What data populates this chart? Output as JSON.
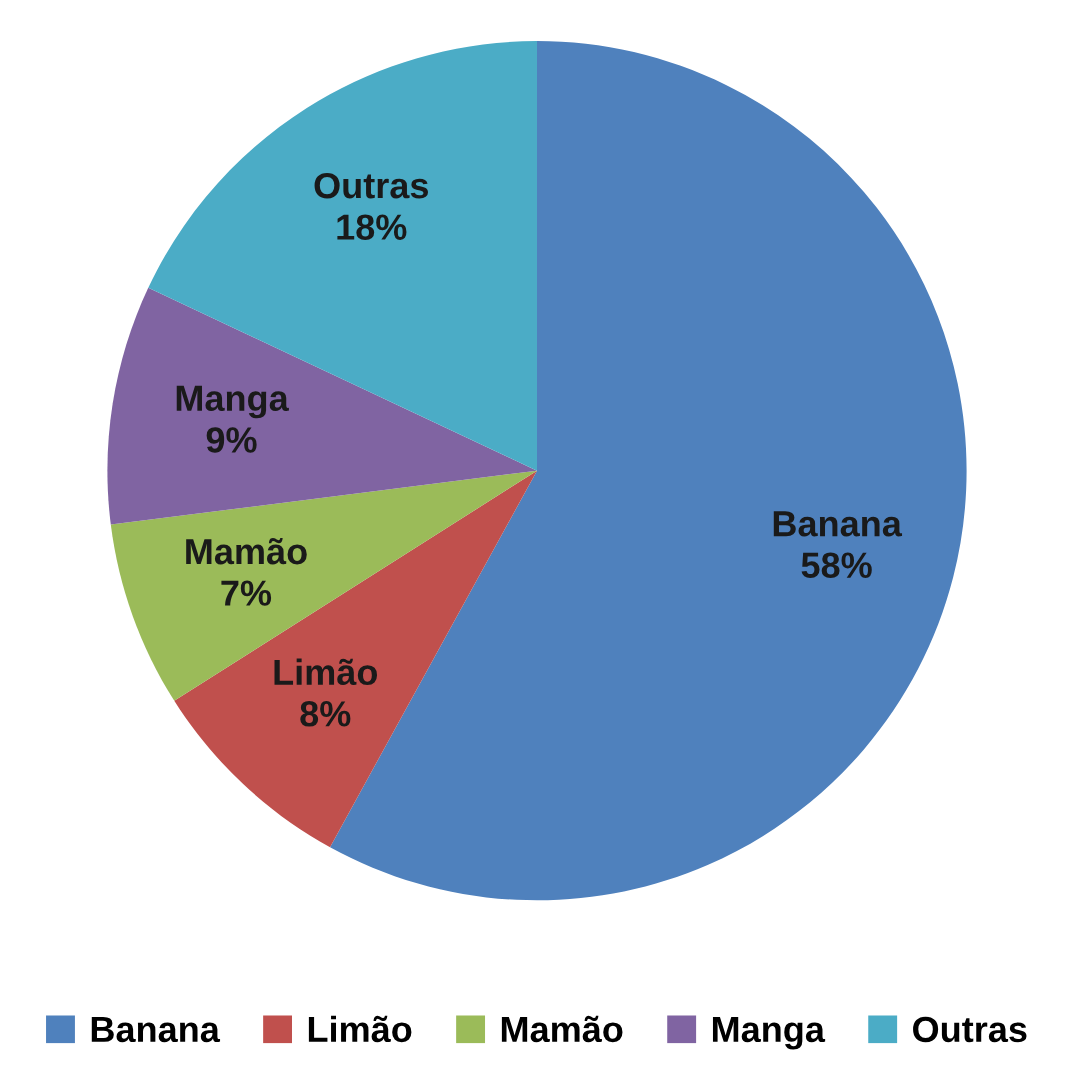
{
  "chart_data": {
    "type": "pie",
    "categories": [
      "Banana",
      "Limão",
      "Mamão",
      "Manga",
      "Outras"
    ],
    "values": [
      58,
      8,
      7,
      9,
      18
    ],
    "value_labels": [
      "58%",
      "8%",
      "7%",
      "9%",
      "18%"
    ],
    "colors": [
      "#4f81bd",
      "#c0504d",
      "#9bbb59",
      "#8064a2",
      "#4bacc6"
    ],
    "legend": "bottom"
  }
}
